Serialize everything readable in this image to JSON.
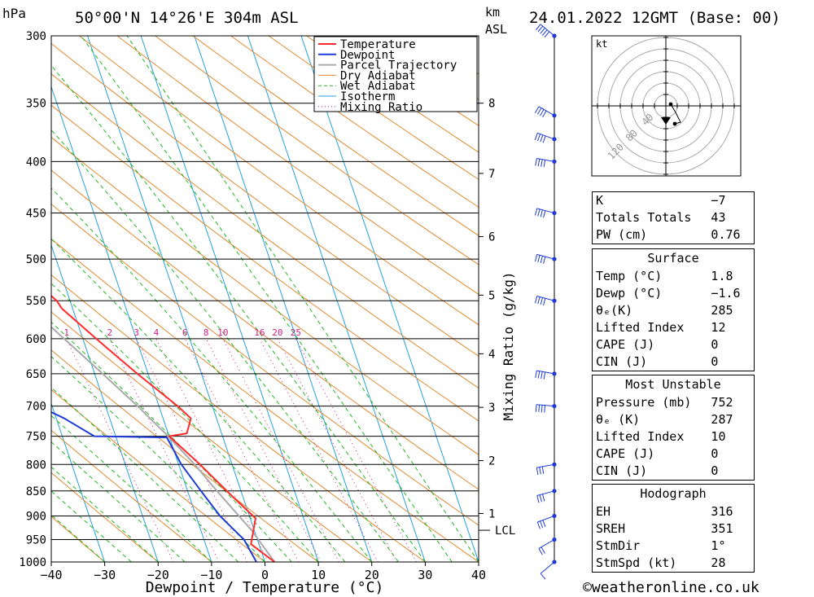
{
  "header": {
    "location": "50°00'N 14°26'E 304m ASL",
    "date": "24.01.2022 12GMT (Base: 00)",
    "hpa_label": "hPa",
    "km_label": "km",
    "asl_label": "ASL"
  },
  "footer": {
    "credit": "©weatheronline.co.uk"
  },
  "chart_data": {
    "type": "line",
    "title": "",
    "xlabel": "Dewpoint / Temperature (°C)",
    "ylabel": "hPa",
    "right_axis_label": "Mixing Ratio (g/kg)",
    "xlim": [
      -40,
      40
    ],
    "ylim": [
      1000,
      300
    ],
    "log_y": true,
    "skew": true,
    "x_ticks": [
      -40,
      -30,
      -20,
      -10,
      0,
      10,
      20,
      30,
      40
    ],
    "x_tick_labels": [
      "−40",
      "−30",
      "−20",
      "−10",
      "0",
      "10",
      "20",
      "30",
      "40"
    ],
    "pressure_levels": [
      300,
      350,
      400,
      450,
      500,
      550,
      600,
      650,
      700,
      750,
      800,
      850,
      900,
      950,
      1000
    ],
    "km_ticks": [
      {
        "p": 350,
        "label": "8"
      },
      {
        "p": 411,
        "label": "7"
      },
      {
        "p": 475,
        "label": "6"
      },
      {
        "p": 543,
        "label": "5"
      },
      {
        "p": 621,
        "label": "4"
      },
      {
        "p": 702,
        "label": "3"
      },
      {
        "p": 793,
        "label": "2"
      },
      {
        "p": 895,
        "label": "1"
      }
    ],
    "lcl": {
      "p": 930,
      "label": "LCL"
    },
    "mixing_ratio_labels": [
      "1",
      "2",
      "3",
      "4",
      "6",
      "8",
      "10",
      "16",
      "20",
      "25"
    ],
    "mixing_ratio_values": [
      1,
      2,
      3,
      4,
      6,
      8,
      10,
      16,
      20,
      25
    ],
    "legend": [
      "Temperature",
      "Dewpoint",
      "Parcel Trajectory",
      "Dry Adiabat",
      "Wet Adiabat",
      "Isotherm",
      "Mixing Ratio"
    ],
    "colors": {
      "temperature": "#ff2a2a",
      "dewpoint": "#1e3cd8",
      "parcel": "#aaaaaa",
      "dry_adiabat": "#e08a30",
      "wet_adiabat": "#22b822",
      "isotherm": "#27a0de",
      "mixing_ratio": "#cc2288"
    },
    "series": [
      {
        "name": "Temperature",
        "points": [
          [
            1000,
            1.8
          ],
          [
            960,
            -1.5
          ],
          [
            905,
            1.0
          ],
          [
            860,
            -2.0
          ],
          [
            800,
            -6.0
          ],
          [
            750,
            -10.0
          ],
          [
            745,
            -6.5
          ],
          [
            720,
            -4.8
          ],
          [
            700,
            -6.5
          ],
          [
            650,
            -12.0
          ],
          [
            600,
            -17.5
          ],
          [
            560,
            -22.0
          ],
          [
            550,
            -22.5
          ],
          [
            500,
            -28.5
          ],
          [
            450,
            -34.5
          ],
          [
            405,
            -40.0
          ],
          [
            395,
            -42.5
          ],
          [
            380,
            -40.0
          ],
          [
            300,
            -52.0
          ]
        ]
      },
      {
        "name": "Dewpoint",
        "points": [
          [
            1000,
            -1.6
          ],
          [
            950,
            -2.5
          ],
          [
            925,
            -4.0
          ],
          [
            900,
            -5.5
          ],
          [
            850,
            -7.5
          ],
          [
            800,
            -9.5
          ],
          [
            752,
            -10.5
          ],
          [
            750,
            -24.0
          ],
          [
            720,
            -28.5
          ],
          [
            700,
            -32.5
          ],
          [
            650,
            -34.0
          ],
          [
            600,
            -36.5
          ],
          [
            590,
            -31.0
          ],
          [
            575,
            -34.0
          ],
          [
            565,
            -32.0
          ],
          [
            560,
            -35.5
          ],
          [
            545,
            -35.0
          ],
          [
            530,
            -43.0
          ],
          [
            500,
            -41.0
          ],
          [
            450,
            -50.5
          ],
          [
            440,
            -58.0
          ],
          [
            420,
            -53.5
          ],
          [
            390,
            -59.0
          ],
          [
            350,
            -58.0
          ],
          [
            310,
            -57.5
          ],
          [
            300,
            -60.0
          ]
        ]
      },
      {
        "name": "Parcel Trajectory",
        "points": [
          [
            1000,
            1.8
          ],
          [
            930,
            -0.5
          ],
          [
            850,
            -4.5
          ],
          [
            800,
            -7.0
          ],
          [
            750,
            -10.2
          ],
          [
            700,
            -14.0
          ],
          [
            650,
            -18.5
          ],
          [
            600,
            -23.5
          ],
          [
            550,
            -29.0
          ],
          [
            500,
            -35.0
          ],
          [
            450,
            -42.0
          ],
          [
            400,
            -50.0
          ],
          [
            350,
            -58.5
          ],
          [
            300,
            -68.0
          ]
        ]
      }
    ],
    "wind_profile": [
      {
        "p": 1000,
        "dir": 230,
        "kt": 10
      },
      {
        "p": 950,
        "dir": 240,
        "kt": 20
      },
      {
        "p": 900,
        "dir": 250,
        "kt": 30
      },
      {
        "p": 850,
        "dir": 255,
        "kt": 30
      },
      {
        "p": 800,
        "dir": 260,
        "kt": 30
      },
      {
        "p": 700,
        "dir": 275,
        "kt": 35
      },
      {
        "p": 650,
        "dir": 280,
        "kt": 35
      },
      {
        "p": 550,
        "dir": 285,
        "kt": 40
      },
      {
        "p": 500,
        "dir": 285,
        "kt": 40
      },
      {
        "p": 450,
        "dir": 285,
        "kt": 40
      },
      {
        "p": 400,
        "dir": 280,
        "kt": 40
      },
      {
        "p": 380,
        "dir": 290,
        "kt": 40
      },
      {
        "p": 360,
        "dir": 300,
        "kt": 40
      },
      {
        "p": 300,
        "dir": 310,
        "kt": 45
      }
    ],
    "hodograph": {
      "unit_label": "kt",
      "ring_labels": [
        "40",
        "80",
        "120"
      ]
    }
  },
  "indices": {
    "general": [
      {
        "k": "K",
        "v": "−7"
      },
      {
        "k": "Totals Totals",
        "v": "43"
      },
      {
        "k": "PW (cm)",
        "v": "0.76"
      }
    ],
    "surface": {
      "title": "Surface",
      "rows": [
        {
          "k": "Temp (°C)",
          "v": "1.8"
        },
        {
          "k": "Dewp (°C)",
          "v": "−1.6"
        },
        {
          "k": "θₑ(K)",
          "v": "285"
        },
        {
          "k": "Lifted Index",
          "v": "12"
        },
        {
          "k": "CAPE (J)",
          "v": "0"
        },
        {
          "k": "CIN (J)",
          "v": "0"
        }
      ]
    },
    "most_unstable": {
      "title": "Most Unstable",
      "rows": [
        {
          "k": "Pressure (mb)",
          "v": "752"
        },
        {
          "k": "θₑ (K)",
          "v": "287"
        },
        {
          "k": "Lifted Index",
          "v": "10"
        },
        {
          "k": "CAPE (J)",
          "v": "0"
        },
        {
          "k": "CIN (J)",
          "v": "0"
        }
      ]
    },
    "hodograph": {
      "title": "Hodograph",
      "rows": [
        {
          "k": "EH",
          "v": "316"
        },
        {
          "k": "SREH",
          "v": "351"
        },
        {
          "k": "StmDir",
          "v": "1°"
        },
        {
          "k": "StmSpd (kt)",
          "v": "28"
        }
      ]
    }
  }
}
